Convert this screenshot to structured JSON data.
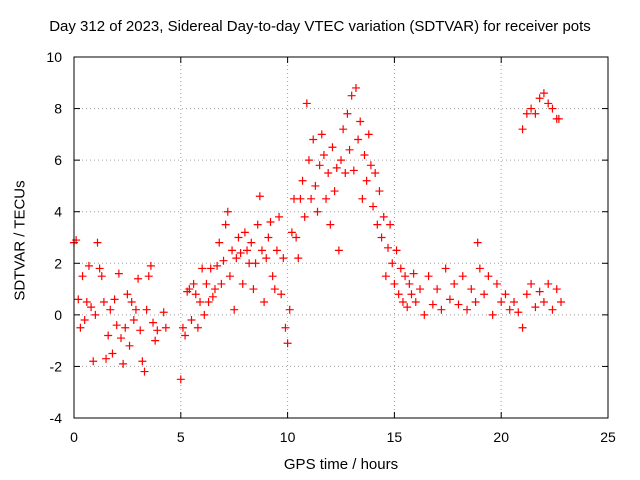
{
  "chart_data": {
    "type": "scatter",
    "title": "Day 312 of 2023, Sidereal Day-to-day VTEC variation (SDTVAR) for receiver pots",
    "xlabel": "GPS time / hours",
    "ylabel": "SDTVAR / TECUs",
    "xlim": [
      0,
      25
    ],
    "ylim": [
      -4,
      10
    ],
    "xticks": [
      0,
      5,
      10,
      15,
      20,
      25
    ],
    "yticks": [
      -4,
      -2,
      0,
      2,
      4,
      6,
      8,
      10
    ],
    "xtick_labels": [
      "0",
      "5",
      "10",
      "15",
      "20",
      "25"
    ],
    "ytick_labels": [
      "-4",
      "-2",
      "0",
      "2",
      "4",
      "6",
      "8",
      "10"
    ],
    "grid": true,
    "marker": "+",
    "color": "#ff0000",
    "series": [
      {
        "name": "SDTVAR",
        "points": [
          [
            0.0,
            2.8
          ],
          [
            0.1,
            2.9
          ],
          [
            0.2,
            0.6
          ],
          [
            0.3,
            -0.5
          ],
          [
            0.4,
            1.5
          ],
          [
            0.5,
            -0.2
          ],
          [
            0.6,
            0.5
          ],
          [
            0.7,
            1.9
          ],
          [
            0.8,
            0.3
          ],
          [
            0.9,
            -1.8
          ],
          [
            1.0,
            0.0
          ],
          [
            1.1,
            2.8
          ],
          [
            1.2,
            1.8
          ],
          [
            1.3,
            1.5
          ],
          [
            1.4,
            0.5
          ],
          [
            1.5,
            -1.7
          ],
          [
            1.6,
            -0.8
          ],
          [
            1.7,
            0.2
          ],
          [
            1.8,
            -1.5
          ],
          [
            1.9,
            0.6
          ],
          [
            2.0,
            -0.4
          ],
          [
            2.1,
            1.6
          ],
          [
            2.2,
            -0.9
          ],
          [
            2.3,
            -1.9
          ],
          [
            2.4,
            -0.5
          ],
          [
            2.5,
            0.8
          ],
          [
            2.6,
            -1.2
          ],
          [
            2.7,
            0.5
          ],
          [
            2.8,
            -0.2
          ],
          [
            2.9,
            0.2
          ],
          [
            3.0,
            1.4
          ],
          [
            3.1,
            -0.6
          ],
          [
            3.2,
            -1.8
          ],
          [
            3.3,
            -2.2
          ],
          [
            3.4,
            0.2
          ],
          [
            3.5,
            1.5
          ],
          [
            3.6,
            1.9
          ],
          [
            3.7,
            -0.3
          ],
          [
            3.8,
            -1.0
          ],
          [
            3.9,
            -0.6
          ],
          [
            4.2,
            0.1
          ],
          [
            4.3,
            -0.5
          ],
          [
            5.0,
            -2.5
          ],
          [
            5.1,
            -0.5
          ],
          [
            5.2,
            -0.8
          ],
          [
            5.3,
            0.9
          ],
          [
            5.4,
            1.0
          ],
          [
            5.5,
            -0.2
          ],
          [
            5.6,
            1.2
          ],
          [
            5.7,
            0.8
          ],
          [
            5.8,
            -0.5
          ],
          [
            5.9,
            0.5
          ],
          [
            6.0,
            1.8
          ],
          [
            6.1,
            0.0
          ],
          [
            6.2,
            1.2
          ],
          [
            6.3,
            0.5
          ],
          [
            6.4,
            1.8
          ],
          [
            6.5,
            0.7
          ],
          [
            6.6,
            1.0
          ],
          [
            6.7,
            1.9
          ],
          [
            6.8,
            2.8
          ],
          [
            6.9,
            1.2
          ],
          [
            7.0,
            2.1
          ],
          [
            7.1,
            3.5
          ],
          [
            7.2,
            4.0
          ],
          [
            7.3,
            1.5
          ],
          [
            7.4,
            2.5
          ],
          [
            7.5,
            0.2
          ],
          [
            7.6,
            2.2
          ],
          [
            7.7,
            3.0
          ],
          [
            7.8,
            2.4
          ],
          [
            7.9,
            1.2
          ],
          [
            8.0,
            3.2
          ],
          [
            8.1,
            2.5
          ],
          [
            8.2,
            2.0
          ],
          [
            8.3,
            2.8
          ],
          [
            8.4,
            1.0
          ],
          [
            8.5,
            2.0
          ],
          [
            8.6,
            3.5
          ],
          [
            8.7,
            4.6
          ],
          [
            8.8,
            2.5
          ],
          [
            8.9,
            0.5
          ],
          [
            9.0,
            2.2
          ],
          [
            9.1,
            3.0
          ],
          [
            9.2,
            3.6
          ],
          [
            9.3,
            1.5
          ],
          [
            9.4,
            1.0
          ],
          [
            9.5,
            2.5
          ],
          [
            9.6,
            3.8
          ],
          [
            9.7,
            0.8
          ],
          [
            9.8,
            2.2
          ],
          [
            9.9,
            -0.5
          ],
          [
            10.0,
            -1.1
          ],
          [
            10.1,
            0.2
          ],
          [
            10.2,
            3.2
          ],
          [
            10.3,
            4.5
          ],
          [
            10.4,
            3.0
          ],
          [
            10.5,
            2.2
          ],
          [
            10.6,
            4.5
          ],
          [
            10.7,
            5.2
          ],
          [
            10.8,
            3.8
          ],
          [
            10.9,
            8.2
          ],
          [
            11.0,
            6.0
          ],
          [
            11.1,
            4.5
          ],
          [
            11.2,
            6.8
          ],
          [
            11.3,
            5.0
          ],
          [
            11.4,
            4.0
          ],
          [
            11.5,
            5.8
          ],
          [
            11.6,
            7.0
          ],
          [
            11.7,
            6.2
          ],
          [
            11.8,
            4.5
          ],
          [
            11.9,
            5.5
          ],
          [
            12.0,
            3.5
          ],
          [
            12.1,
            6.5
          ],
          [
            12.2,
            4.8
          ],
          [
            12.3,
            5.7
          ],
          [
            12.4,
            2.5
          ],
          [
            12.5,
            6.0
          ],
          [
            12.6,
            7.2
          ],
          [
            12.7,
            5.5
          ],
          [
            12.8,
            7.8
          ],
          [
            12.9,
            6.4
          ],
          [
            13.0,
            8.5
          ],
          [
            13.1,
            5.6
          ],
          [
            13.2,
            8.8
          ],
          [
            13.3,
            6.8
          ],
          [
            13.4,
            7.5
          ],
          [
            13.5,
            4.5
          ],
          [
            13.6,
            6.2
          ],
          [
            13.7,
            5.2
          ],
          [
            13.8,
            7.0
          ],
          [
            13.9,
            5.8
          ],
          [
            14.0,
            4.2
          ],
          [
            14.1,
            5.5
          ],
          [
            14.2,
            3.5
          ],
          [
            14.3,
            4.8
          ],
          [
            14.4,
            3.0
          ],
          [
            14.5,
            3.8
          ],
          [
            14.6,
            1.5
          ],
          [
            14.7,
            2.6
          ],
          [
            14.8,
            3.5
          ],
          [
            14.9,
            2.0
          ],
          [
            15.0,
            1.2
          ],
          [
            15.1,
            2.5
          ],
          [
            15.2,
            0.8
          ],
          [
            15.3,
            1.8
          ],
          [
            15.4,
            0.5
          ],
          [
            15.5,
            1.5
          ],
          [
            15.6,
            0.3
          ],
          [
            15.7,
            1.2
          ],
          [
            15.8,
            0.8
          ],
          [
            15.9,
            1.6
          ],
          [
            16.0,
            0.5
          ],
          [
            16.2,
            1.0
          ],
          [
            16.4,
            0.0
          ],
          [
            16.6,
            1.5
          ],
          [
            16.8,
            0.4
          ],
          [
            17.0,
            1.0
          ],
          [
            17.2,
            0.2
          ],
          [
            17.4,
            1.8
          ],
          [
            17.6,
            0.6
          ],
          [
            17.8,
            1.2
          ],
          [
            18.0,
            0.4
          ],
          [
            18.2,
            1.5
          ],
          [
            18.4,
            0.2
          ],
          [
            18.6,
            1.0
          ],
          [
            18.8,
            0.5
          ],
          [
            18.9,
            2.8
          ],
          [
            19.0,
            1.8
          ],
          [
            19.2,
            0.8
          ],
          [
            19.4,
            1.5
          ],
          [
            19.6,
            0.0
          ],
          [
            19.8,
            1.2
          ],
          [
            20.0,
            0.5
          ],
          [
            20.2,
            0.8
          ],
          [
            20.4,
            0.2
          ],
          [
            20.6,
            0.5
          ],
          [
            20.8,
            0.1
          ],
          [
            21.0,
            -0.5
          ],
          [
            21.2,
            0.8
          ],
          [
            21.4,
            1.2
          ],
          [
            21.6,
            0.3
          ],
          [
            21.8,
            0.9
          ],
          [
            22.0,
            0.5
          ],
          [
            22.2,
            1.2
          ],
          [
            22.4,
            0.2
          ],
          [
            22.6,
            1.0
          ],
          [
            22.8,
            0.5
          ],
          [
            21.0,
            7.2
          ],
          [
            21.2,
            7.8
          ],
          [
            21.4,
            8.0
          ],
          [
            21.6,
            7.8
          ],
          [
            21.8,
            8.4
          ],
          [
            22.0,
            8.6
          ],
          [
            22.2,
            8.2
          ],
          [
            22.4,
            8.0
          ],
          [
            22.6,
            7.6
          ],
          [
            22.7,
            7.6
          ]
        ]
      }
    ]
  }
}
